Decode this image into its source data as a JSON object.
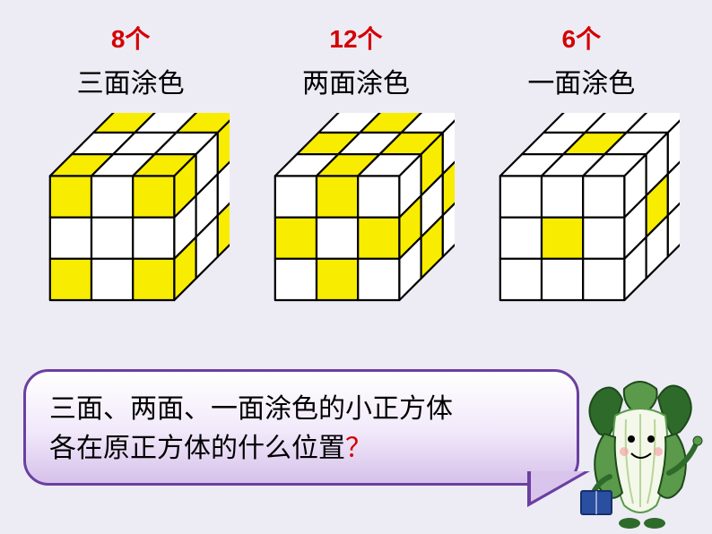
{
  "background_color": "#edecf5",
  "count_color": "#d50000",
  "count_fontsize": 28,
  "label_fontsize": 30,
  "cube": {
    "n": 3,
    "cell": 42,
    "depth": 22,
    "fill_white": "#ffffff",
    "fill_yellow": "#f8ec00",
    "stroke": "#000000",
    "stroke_width": 2
  },
  "columns": [
    {
      "id": "corners",
      "count": "8个",
      "label": "三面涂色",
      "front_pattern": [
        [
          1,
          0,
          1
        ],
        [
          0,
          0,
          0
        ],
        [
          1,
          0,
          1
        ]
      ],
      "top_pattern": [
        [
          1,
          0,
          1
        ],
        [
          0,
          0,
          0
        ],
        [
          1,
          0,
          1
        ]
      ],
      "side_pattern": [
        [
          1,
          0,
          1
        ],
        [
          0,
          0,
          0
        ],
        [
          1,
          0,
          1
        ]
      ]
    },
    {
      "id": "edges",
      "count": "12个",
      "label": "两面涂色",
      "front_pattern": [
        [
          0,
          1,
          0
        ],
        [
          1,
          0,
          1
        ],
        [
          0,
          1,
          0
        ]
      ],
      "top_pattern": [
        [
          0,
          1,
          0
        ],
        [
          1,
          0,
          1
        ],
        [
          0,
          1,
          0
        ]
      ],
      "side_pattern": [
        [
          0,
          1,
          0
        ],
        [
          1,
          0,
          1
        ],
        [
          0,
          1,
          0
        ]
      ]
    },
    {
      "id": "faces",
      "count": "6个",
      "label": "一面涂色",
      "front_pattern": [
        [
          0,
          0,
          0
        ],
        [
          0,
          1,
          0
        ],
        [
          0,
          0,
          0
        ]
      ],
      "top_pattern": [
        [
          0,
          0,
          0
        ],
        [
          0,
          1,
          0
        ],
        [
          0,
          0,
          0
        ]
      ],
      "side_pattern": [
        [
          0,
          0,
          0
        ],
        [
          0,
          1,
          0
        ],
        [
          0,
          0,
          0
        ]
      ]
    }
  ],
  "speech": {
    "line1": "三面、两面、一面涂色的小正方体",
    "line2_prefix": "各在原正方体的什么位置",
    "line2_qmark": "？",
    "border_color": "#6b3fa0",
    "gradient_top": "#ffffff",
    "gradient_bottom": "#d6c1ea",
    "fontsize": 30
  },
  "mascot": {
    "leaf_dark": "#2e6b2a",
    "leaf_light": "#5a9a4a",
    "stem_white": "#f4f8ea",
    "book_color": "#2a4ea0",
    "outline": "#1d4a1a"
  }
}
